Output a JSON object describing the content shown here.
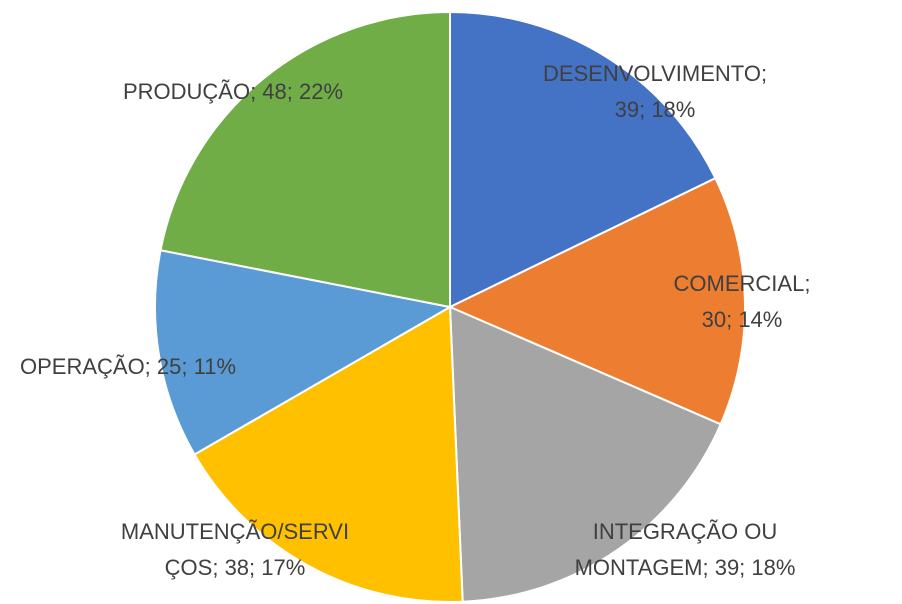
{
  "chart_data": {
    "type": "pie",
    "values": [
      39,
      30,
      39,
      38,
      25,
      48
    ],
    "value_labels": [
      "DESENVOLVIMENTO; 39; 18%",
      "COMERCIAL; 30; 14%",
      "INTEGRAÇÃO OU MONTAGEM; 39; 18%",
      "MANUTENÇÃO/SERVIÇOS; 38; 17%",
      "OPERAÇÃO; 25; 11%",
      "PRODUÇÃO; 48; 22%"
    ],
    "colors": [
      "#4472c4",
      "#ed7d31",
      "#a5a5a5",
      "#ffc000",
      "#5b9bd5",
      "#70ad47"
    ]
  }
}
